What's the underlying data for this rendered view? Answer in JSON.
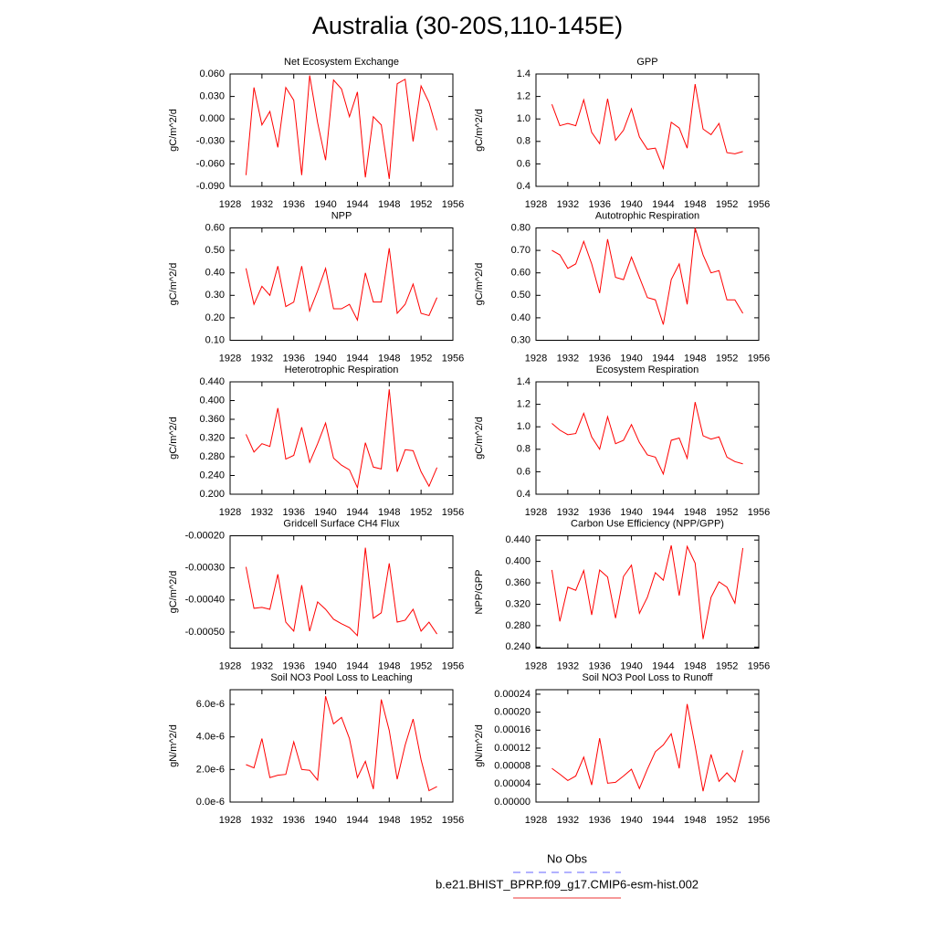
{
  "title": "Australia (30-20S,110-145E)",
  "legend": [
    {
      "name": "No Obs",
      "color": "#6666ff",
      "dash": "8,6"
    },
    {
      "name": "b.e21.BHIST_BPRP.f09_g17.CMIP6-esm-hist.002",
      "color": "#ee3333"
    }
  ],
  "chart_data": [
    {
      "type": "line",
      "title": "Net Ecosystem Exchange",
      "y_label": "gC/m^2/d",
      "color": "#ff0000",
      "x": [
        1930,
        1931,
        1932,
        1933,
        1934,
        1935,
        1936,
        1937,
        1938,
        1939,
        1940,
        1941,
        1942,
        1943,
        1944,
        1945,
        1946,
        1947,
        1948,
        1949,
        1950,
        1951,
        1952,
        1953,
        1954
      ],
      "values": [
        -0.075,
        0.042,
        -0.008,
        0.01,
        -0.038,
        0.042,
        0.025,
        -0.075,
        0.058,
        -0.005,
        -0.055,
        0.052,
        0.04,
        0.003,
        0.036,
        -0.078,
        0.003,
        -0.008,
        -0.08,
        0.047,
        0.053,
        -0.03,
        0.044,
        0.022,
        -0.015
      ],
      "xlim": [
        1928,
        1956
      ],
      "xticks": [
        1928,
        1932,
        1936,
        1940,
        1944,
        1948,
        1952,
        1956
      ],
      "ylim": [
        -0.09,
        0.06
      ],
      "yticks": [
        {
          "value": -0.09,
          "label": "-0.090"
        },
        {
          "value": -0.06,
          "label": "-0.060"
        },
        {
          "value": -0.03,
          "label": "-0.030"
        },
        {
          "value": 0,
          "label": "0.000"
        },
        {
          "value": 0.03,
          "label": "0.030"
        },
        {
          "value": 0.06,
          "label": "0.060"
        }
      ]
    },
    {
      "type": "line",
      "title": "GPP",
      "y_label": "gC/m^2/d",
      "color": "#ff0000",
      "x": [
        1930,
        1931,
        1932,
        1933,
        1934,
        1935,
        1936,
        1937,
        1938,
        1939,
        1940,
        1941,
        1942,
        1943,
        1944,
        1945,
        1946,
        1947,
        1948,
        1949,
        1950,
        1951,
        1952,
        1953,
        1954
      ],
      "values": [
        1.13,
        0.94,
        0.96,
        0.94,
        1.17,
        0.88,
        0.78,
        1.18,
        0.81,
        0.9,
        1.09,
        0.84,
        0.73,
        0.74,
        0.56,
        0.97,
        0.92,
        0.74,
        1.31,
        0.91,
        0.86,
        0.96,
        0.7,
        0.69,
        0.71
      ],
      "xlim": [
        1928,
        1956
      ],
      "xticks": [
        1928,
        1932,
        1936,
        1940,
        1944,
        1948,
        1952,
        1956
      ],
      "ylim": [
        0.4,
        1.4
      ],
      "yticks": [
        0.4,
        0.6,
        0.8,
        {
          "value": 1,
          "label": "1.0"
        },
        1.2,
        1.4
      ]
    },
    {
      "type": "line",
      "title": "NPP",
      "y_label": "gC/m^2/d",
      "color": "#ff0000",
      "x": [
        1930,
        1931,
        1932,
        1933,
        1934,
        1935,
        1936,
        1937,
        1938,
        1939,
        1940,
        1941,
        1942,
        1943,
        1944,
        1945,
        1946,
        1947,
        1948,
        1949,
        1950,
        1951,
        1952,
        1953,
        1954
      ],
      "values": [
        0.42,
        0.26,
        0.34,
        0.3,
        0.43,
        0.25,
        0.27,
        0.43,
        0.23,
        0.32,
        0.42,
        0.24,
        0.24,
        0.26,
        0.19,
        0.4,
        0.27,
        0.27,
        0.51,
        0.22,
        0.26,
        0.35,
        0.22,
        0.21,
        0.29
      ],
      "xlim": [
        1928,
        1956
      ],
      "xticks": [
        1928,
        1932,
        1936,
        1940,
        1944,
        1948,
        1952,
        1956
      ],
      "ylim": [
        0.1,
        0.6
      ],
      "yticks": [
        {
          "value": 0.1,
          "label": "0.10"
        },
        {
          "value": 0.2,
          "label": "0.20"
        },
        {
          "value": 0.3,
          "label": "0.30"
        },
        {
          "value": 0.4,
          "label": "0.40"
        },
        {
          "value": 0.5,
          "label": "0.50"
        },
        {
          "value": 0.6,
          "label": "0.60"
        }
      ]
    },
    {
      "type": "line",
      "title": "Autotrophic Respiration",
      "y_label": "gC/m^2/d",
      "color": "#ff0000",
      "x": [
        1930,
        1931,
        1932,
        1933,
        1934,
        1935,
        1936,
        1937,
        1938,
        1939,
        1940,
        1941,
        1942,
        1943,
        1944,
        1945,
        1946,
        1947,
        1948,
        1949,
        1950,
        1951,
        1952,
        1953,
        1954
      ],
      "values": [
        0.7,
        0.68,
        0.62,
        0.64,
        0.74,
        0.64,
        0.51,
        0.75,
        0.58,
        0.57,
        0.67,
        0.58,
        0.49,
        0.48,
        0.37,
        0.57,
        0.64,
        0.46,
        0.8,
        0.68,
        0.6,
        0.61,
        0.48,
        0.48,
        0.42
      ],
      "xlim": [
        1928,
        1956
      ],
      "xticks": [
        1928,
        1932,
        1936,
        1940,
        1944,
        1948,
        1952,
        1956
      ],
      "ylim": [
        0.3,
        0.8
      ],
      "yticks": [
        {
          "value": 0.3,
          "label": "0.30"
        },
        {
          "value": 0.4,
          "label": "0.40"
        },
        {
          "value": 0.5,
          "label": "0.50"
        },
        {
          "value": 0.6,
          "label": "0.60"
        },
        {
          "value": 0.7,
          "label": "0.70"
        },
        {
          "value": 0.8,
          "label": "0.80"
        }
      ]
    },
    {
      "type": "line",
      "title": "Heterotrophic Respiration",
      "y_label": "gC/m^2/d",
      "color": "#ff0000",
      "x": [
        1930,
        1931,
        1932,
        1933,
        1934,
        1935,
        1936,
        1937,
        1938,
        1939,
        1940,
        1941,
        1942,
        1943,
        1944,
        1945,
        1946,
        1947,
        1948,
        1949,
        1950,
        1951,
        1952,
        1953,
        1954
      ],
      "values": [
        0.328,
        0.29,
        0.308,
        0.302,
        0.384,
        0.275,
        0.283,
        0.343,
        0.268,
        0.308,
        0.352,
        0.277,
        0.262,
        0.252,
        0.214,
        0.31,
        0.258,
        0.254,
        0.424,
        0.248,
        0.295,
        0.293,
        0.248,
        0.217,
        0.257
      ],
      "xlim": [
        1928,
        1956
      ],
      "xticks": [
        1928,
        1932,
        1936,
        1940,
        1944,
        1948,
        1952,
        1956
      ],
      "ylim": [
        0.2,
        0.44
      ],
      "yticks": [
        {
          "value": 0.2,
          "label": "0.200"
        },
        {
          "value": 0.24,
          "label": "0.240"
        },
        {
          "value": 0.28,
          "label": "0.280"
        },
        {
          "value": 0.32,
          "label": "0.320"
        },
        {
          "value": 0.36,
          "label": "0.360"
        },
        {
          "value": 0.4,
          "label": "0.400"
        },
        {
          "value": 0.44,
          "label": "0.440"
        }
      ]
    },
    {
      "type": "line",
      "title": "Ecosystem Respiration",
      "y_label": "gC/m^2/d",
      "color": "#ff0000",
      "x": [
        1930,
        1931,
        1932,
        1933,
        1934,
        1935,
        1936,
        1937,
        1938,
        1939,
        1940,
        1941,
        1942,
        1943,
        1944,
        1945,
        1946,
        1947,
        1948,
        1949,
        1950,
        1951,
        1952,
        1953,
        1954
      ],
      "values": [
        1.03,
        0.97,
        0.93,
        0.94,
        1.12,
        0.91,
        0.8,
        1.09,
        0.85,
        0.88,
        1.02,
        0.86,
        0.75,
        0.73,
        0.58,
        0.88,
        0.9,
        0.72,
        1.22,
        0.92,
        0.89,
        0.91,
        0.73,
        0.69,
        0.67
      ],
      "xlim": [
        1928,
        1956
      ],
      "xticks": [
        1928,
        1932,
        1936,
        1940,
        1944,
        1948,
        1952,
        1956
      ],
      "ylim": [
        0.4,
        1.4
      ],
      "yticks": [
        0.4,
        0.6,
        0.8,
        {
          "value": 1,
          "label": "1.0"
        },
        1.2,
        1.4
      ]
    },
    {
      "type": "line",
      "title": "Gridcell Surface CH4 Flux",
      "y_label": "gC/m^2/d",
      "color": "#ff0000",
      "x": [
        1930,
        1931,
        1932,
        1933,
        1934,
        1935,
        1936,
        1937,
        1938,
        1939,
        1940,
        1941,
        1942,
        1943,
        1944,
        1945,
        1946,
        1947,
        1948,
        1949,
        1950,
        1951,
        1952,
        1953,
        1954
      ],
      "values": [
        -0.000297,
        -0.000426,
        -0.000423,
        -0.000429,
        -0.00032,
        -0.000469,
        -0.000497,
        -0.000354,
        -0.000497,
        -0.000406,
        -0.000429,
        -0.00046,
        -0.000474,
        -0.000486,
        -0.000511,
        -0.000237,
        -0.000457,
        -0.00044,
        -0.000286,
        -0.000469,
        -0.000463,
        -0.000429,
        -0.000497,
        -0.000469,
        -0.000506
      ],
      "xlim": [
        1928,
        1956
      ],
      "xticks": [
        1928,
        1932,
        1936,
        1940,
        1944,
        1948,
        1952,
        1956
      ],
      "ylim": [
        -0.00055,
        -0.0002
      ],
      "yticks": [
        {
          "value": -0.0005,
          "label": "-0.00050"
        },
        {
          "value": -0.0004,
          "label": "-0.00040"
        },
        {
          "value": -0.0003,
          "label": "-0.00030"
        },
        {
          "value": -0.0002,
          "label": "-0.00020"
        }
      ]
    },
    {
      "type": "line",
      "title": "Carbon Use Efficiency (NPP/GPP)",
      "y_label": "NPP/GPP",
      "color": "#ff0000",
      "x": [
        1930,
        1931,
        1932,
        1933,
        1934,
        1935,
        1936,
        1937,
        1938,
        1939,
        1940,
        1941,
        1942,
        1943,
        1944,
        1945,
        1946,
        1947,
        1948,
        1949,
        1950,
        1951,
        1952,
        1953,
        1954
      ],
      "values": [
        0.384,
        0.288,
        0.352,
        0.346,
        0.383,
        0.3,
        0.384,
        0.371,
        0.294,
        0.372,
        0.393,
        0.303,
        0.333,
        0.379,
        0.365,
        0.43,
        0.336,
        0.428,
        0.397,
        0.255,
        0.333,
        0.362,
        0.352,
        0.322,
        0.425
      ],
      "xlim": [
        1928,
        1956
      ],
      "xticks": [
        1928,
        1932,
        1936,
        1940,
        1944,
        1948,
        1952,
        1956
      ],
      "ylim": [
        0.238,
        0.448
      ],
      "yticks": [
        {
          "value": 0.24,
          "label": "0.240"
        },
        {
          "value": 0.28,
          "label": "0.280"
        },
        {
          "value": 0.32,
          "label": "0.320"
        },
        {
          "value": 0.36,
          "label": "0.360"
        },
        {
          "value": 0.4,
          "label": "0.400"
        },
        {
          "value": 0.44,
          "label": "0.440"
        }
      ]
    },
    {
      "type": "line",
      "title": "Soil NO3 Pool Loss to Leaching",
      "y_label": "gN/m^2/d",
      "color": "#ff0000",
      "x": [
        1930,
        1931,
        1932,
        1933,
        1934,
        1935,
        1936,
        1937,
        1938,
        1939,
        1940,
        1941,
        1942,
        1943,
        1944,
        1945,
        1946,
        1947,
        1948,
        1949,
        1950,
        1951,
        1952,
        1953,
        1954
      ],
      "values": [
        2.3e-06,
        2.1e-06,
        3.9e-06,
        1.5e-06,
        1.65e-06,
        1.7e-06,
        3.7e-06,
        2e-06,
        1.95e-06,
        1.35e-06,
        6.5e-06,
        4.8e-06,
        5.2e-06,
        3.9e-06,
        1.5e-06,
        2.5e-06,
        8e-07,
        6.3e-06,
        4.4e-06,
        1.4e-06,
        3.5e-06,
        5.1e-06,
        2.6e-06,
        7e-07,
        9.5e-07
      ],
      "xlim": [
        1928,
        1956
      ],
      "xticks": [
        1928,
        1932,
        1936,
        1940,
        1944,
        1948,
        1952,
        1956
      ],
      "ylim": [
        0,
        6.9e-06
      ],
      "yticks": [
        {
          "value": 0,
          "label": "0.0e-6"
        },
        {
          "value": 2e-06,
          "label": "2.0e-6"
        },
        {
          "value": 4e-06,
          "label": "4.0e-6"
        },
        {
          "value": 6e-06,
          "label": "6.0e-6"
        }
      ]
    },
    {
      "type": "line",
      "title": "Soil NO3 Pool Loss to Runoff",
      "y_label": "gN/m^2/d",
      "color": "#ff0000",
      "x": [
        1930,
        1931,
        1932,
        1933,
        1934,
        1935,
        1936,
        1937,
        1938,
        1939,
        1940,
        1941,
        1942,
        1943,
        1944,
        1945,
        1946,
        1947,
        1948,
        1949,
        1950,
        1951,
        1952,
        1953,
        1954
      ],
      "values": [
        7.5e-05,
        6.2e-05,
        4.8e-05,
        5.8e-05,
        0.0001,
        3.8e-05,
        0.000142,
        4.2e-05,
        4.4e-05,
        5.8e-05,
        7.3e-05,
        3e-05,
        7.3e-05,
        0.000112,
        0.000127,
        0.000152,
        7.5e-05,
        0.000218,
        0.000125,
        2.4e-05,
        0.000106,
        4.6e-05,
        6.5e-05,
        4.5e-05,
        0.000115
      ],
      "xlim": [
        1928,
        1956
      ],
      "xticks": [
        1928,
        1932,
        1936,
        1940,
        1944,
        1948,
        1952,
        1956
      ],
      "ylim": [
        0,
        0.00025
      ],
      "yticks": [
        {
          "value": 0,
          "label": "0.00000"
        },
        {
          "value": 4e-05,
          "label": "0.00004"
        },
        {
          "value": 8e-05,
          "label": "0.00008"
        },
        {
          "value": 0.00012,
          "label": "0.00012"
        },
        {
          "value": 0.00016,
          "label": "0.00016"
        },
        {
          "value": 0.0002,
          "label": "0.00020"
        },
        {
          "value": 0.00024,
          "label": "0.00024"
        }
      ]
    }
  ]
}
